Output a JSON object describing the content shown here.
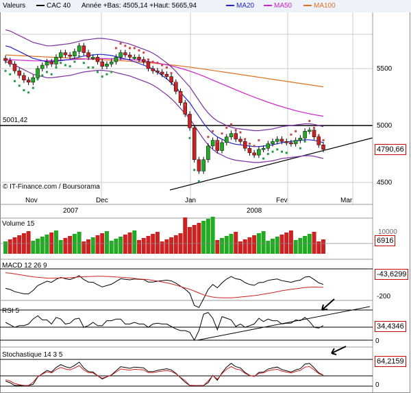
{
  "header": {
    "valeurs_label": "Valeurs",
    "instrument": "CAC 40",
    "stats": "Année +Bas: 4505,14 +Haut: 5665,94",
    "legend": [
      {
        "name": "MA20",
        "color": "#2222cc"
      },
      {
        "name": "MA50",
        "color": "#cc22cc"
      },
      {
        "name": "MA100",
        "color": "#e07020"
      }
    ]
  },
  "price_panel": {
    "level_label": "5001,42",
    "last_value": "4790,66",
    "source": "© IT-Finance.com / Boursorama",
    "y_ticks": [
      "5500",
      "5000",
      "4500"
    ],
    "months": [
      "Nov",
      "Dec",
      "Jan",
      "Fev",
      "Mar"
    ],
    "years": [
      "2007",
      "2008"
    ]
  },
  "volume_panel": {
    "label": "Volume 15",
    "value": "6916",
    "tick": "10000"
  },
  "macd_panel": {
    "label": "MACD 12 26 9",
    "value": "-43,6299",
    "tick": "-200"
  },
  "rsi_panel": {
    "label": "RSI 5",
    "value": "34,4346",
    "tick": "0"
  },
  "stoch_panel": {
    "label": "Stochastique 14 3 5",
    "value": "64,2159",
    "tick": "0"
  },
  "colors": {
    "up": "#22aa22",
    "down": "#cc2222",
    "ma20": "#2222cc",
    "ma50": "#cc22cc",
    "ma100": "#e07020",
    "grid": "#cccccc"
  },
  "chart_data": {
    "type": "line",
    "title": "CAC 40",
    "x": [
      "Nov",
      "Dec",
      "Jan",
      "Fev",
      "Mar"
    ],
    "ylim": [
      4450,
      5900
    ],
    "y_ticks": [
      4500,
      5000,
      5500
    ],
    "candles_close": [
      5570,
      5540,
      5480,
      5440,
      5400,
      5380,
      5420,
      5500,
      5530,
      5560,
      5540,
      5600,
      5640,
      5620,
      5610,
      5650,
      5700,
      5640,
      5600,
      5600,
      5560,
      5520,
      5540,
      5560,
      5600,
      5640,
      5620,
      5600,
      5600,
      5580,
      5560,
      5500,
      5480,
      5470,
      5450,
      5430,
      5380,
      5300,
      5200,
      5100,
      4980,
      4700,
      4600,
      4700,
      4820,
      4870,
      4780,
      4850,
      4900,
      4930,
      4880,
      4860,
      4800,
      4760,
      4740,
      4790,
      4800,
      4840,
      4860,
      4880,
      4860,
      4850,
      4840,
      4870,
      4890,
      4950,
      4960,
      4900,
      4830,
      4791
    ],
    "ma20": [
      5700,
      5690,
      5670,
      5650,
      5630,
      5610,
      5590,
      5580,
      5570,
      5560,
      5560,
      5565,
      5570,
      5575,
      5580,
      5590,
      5600,
      5610,
      5615,
      5620,
      5625,
      5625,
      5620,
      5615,
      5605,
      5595,
      5585,
      5575,
      5560,
      5545,
      5530,
      5515,
      5495,
      5470,
      5440,
      5410,
      5375,
      5335,
      5290,
      5245,
      5200,
      5140,
      5080,
      5020,
      4970,
      4930,
      4900,
      4880,
      4860,
      4845,
      4835,
      4830,
      4825,
      4820,
      4815,
      4815,
      4820,
      4825,
      4830,
      4840,
      4850,
      4855,
      4860,
      4865,
      4870,
      4875,
      4875,
      4870,
      4860,
      4850
    ],
    "ma50": [
      5580,
      5578,
      5576,
      5574,
      5572,
      5570,
      5568,
      5568,
      5568,
      5569,
      5570,
      5572,
      5574,
      5576,
      5578,
      5580,
      5582,
      5584,
      5585,
      5586,
      5587,
      5588,
      5588,
      5587,
      5586,
      5584,
      5582,
      5580,
      5577,
      5573,
      5568,
      5562,
      5556,
      5549,
      5541,
      5533,
      5524,
      5514,
      5503,
      5491,
      5478,
      5464,
      5449,
      5433,
      5416,
      5399,
      5382,
      5365,
      5348,
      5331,
      5314,
      5297,
      5281,
      5265,
      5249,
      5234,
      5219,
      5205,
      5191,
      5178,
      5165,
      5153,
      5142,
      5131,
      5121,
      5112,
      5103,
      5095,
      5088,
      5082
    ],
    "ma100": [
      5620,
      5618,
      5616,
      5614,
      5612,
      5610,
      5608,
      5606,
      5604,
      5602,
      5600,
      5598,
      5596,
      5594,
      5592,
      5590,
      5588,
      5586,
      5584,
      5582,
      5580,
      5578,
      5576,
      5574,
      5572,
      5570,
      5567,
      5564,
      5561,
      5558,
      5555,
      5552,
      5548,
      5544,
      5540,
      5536,
      5532,
      5528,
      5523,
      5518,
      5513,
      5508,
      5502,
      5496,
      5490,
      5484,
      5478,
      5472,
      5466,
      5460,
      5454,
      5448,
      5442,
      5436,
      5430,
      5424,
      5418,
      5412,
      5406,
      5400,
      5394,
      5388,
      5382,
      5376,
      5370,
      5364,
      5358,
      5352,
      5346,
      5340
    ]
  }
}
